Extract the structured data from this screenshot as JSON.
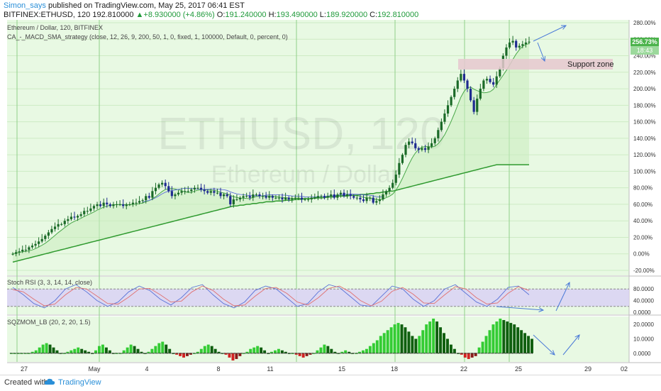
{
  "header": {
    "author": "Simon_says",
    "published_text": " published on TradingView.com, May 25, 2017 06:41 EST",
    "symbol_interval": "BITFINEX:ETHUSD, 120",
    "last": "192.810000",
    "change": "+8.930000 (+4.86%)",
    "open_label": "O:",
    "open": "191.240000",
    "high_label": "H:",
    "high": "193.490000",
    "low_label": "L:",
    "low": "189.920000",
    "close_label": "C:",
    "close": "192.810000"
  },
  "pane_labels": {
    "main_title": "Ethereum / Dollar, 120, BITFINEX",
    "strategy": "CA_-_MACD_SMA_strategy (close, 12, 26, 9, 200, 50, 1, 0, fixed, 1, 100000, Default, 0, percent, 0)",
    "stoch": "Stoch RSI (3, 3, 14, 14, close)",
    "sqz": "SQZMOM_LB (20, 2, 20, 1.5)"
  },
  "watermark": {
    "symbol": "ETHUSD, 120",
    "name": "Ethereum / Dollar"
  },
  "annotation": {
    "support_zone": "Support zone"
  },
  "price_badges": {
    "last": "256.73%",
    "timer": "18:43"
  },
  "footer": {
    "created_with": "Created with",
    "brand": "TradingView"
  },
  "colors": {
    "bg": "#e8f9e3",
    "grid": "#cdebc4",
    "vline": "#8fd08a",
    "ma_long": "#2f9a2f",
    "ma_short": "#4aa84a",
    "ma_blue": "#4a5bd8",
    "support": "#e6c8cf",
    "stoch_band": "#d8d0f5",
    "k_line": "#5a73d8",
    "d_line": "#e07070",
    "mom_green": "#33cc33",
    "mom_dark": "#0f5f0f",
    "mom_red": "#d22222",
    "arrow": "#4a7ad8",
    "up_candle": "#1b6a28",
    "down_candle": "#1e2a90"
  },
  "chart_data": [
    {
      "type": "line",
      "title": "Ethereum / Dollar, 120, BITFINEX",
      "y_unit": "percent",
      "ylim": [
        -20,
        280
      ],
      "y_ticks": [
        "-20.00%",
        "0.00%",
        "20.00%",
        "40.00%",
        "60.00%",
        "80.00%",
        "100.00%",
        "120.00%",
        "140.00%",
        "160.00%",
        "180.00%",
        "200.00%",
        "220.00%",
        "240.00%",
        "260.00%",
        "280.00%"
      ],
      "x_ticks": [
        "27",
        "May",
        "4",
        "8",
        "11",
        "15",
        "18",
        "22",
        "25",
        "29",
        "02"
      ],
      "x": [
        0,
        1,
        2,
        3,
        4,
        5,
        6,
        7,
        8,
        9,
        10,
        11,
        12,
        13,
        14,
        15,
        16,
        17,
        18,
        19,
        20,
        21,
        22,
        23,
        24,
        25,
        26,
        27,
        28,
        29,
        30,
        31,
        32,
        33,
        34,
        35,
        36,
        37,
        38,
        39,
        40,
        41,
        42,
        43,
        44,
        45,
        46,
        47,
        48,
        49,
        50,
        51,
        52,
        53,
        54,
        55,
        56,
        57,
        58,
        59,
        60,
        61,
        62,
        63,
        64,
        65,
        66,
        67,
        68,
        69,
        70,
        71,
        72,
        73,
        74,
        75,
        76,
        77,
        78,
        79,
        80,
        81,
        82,
        83,
        84,
        85,
        86,
        87,
        88,
        89,
        90,
        91,
        92,
        93,
        94,
        95,
        96,
        97,
        98,
        99,
        100,
        101,
        102,
        103,
        104,
        105,
        106,
        107,
        108,
        109,
        110,
        111,
        112,
        113,
        114,
        115,
        116,
        117,
        118,
        119,
        120,
        121,
        122,
        123,
        124,
        125,
        126,
        127,
        128,
        129,
        130,
        131,
        132,
        133,
        134,
        135,
        136,
        137,
        138,
        139,
        140,
        141,
        142,
        143,
        144,
        145,
        146,
        147,
        148,
        149,
        150,
        151,
        152,
        153,
        154,
        155,
        156,
        157,
        158,
        159
      ],
      "series": [
        {
          "name": "",
          "values": [
            0,
            2,
            3,
            5,
            5,
            8,
            10,
            12,
            15,
            18,
            22,
            26,
            30,
            33,
            36,
            36,
            40,
            42,
            45,
            44,
            46,
            48,
            52,
            52,
            55,
            58,
            60,
            58,
            62,
            60,
            58,
            60,
            60,
            60,
            58,
            60,
            60,
            62,
            62,
            64,
            65,
            70,
            68,
            76,
            80,
            84,
            86,
            82,
            76,
            70,
            72,
            74,
            76,
            76,
            76,
            78,
            80,
            80,
            78,
            76,
            74,
            76,
            74,
            74,
            70,
            72,
            70,
            60,
            66,
            66,
            68,
            70,
            70,
            68,
            72,
            72,
            70,
            70,
            68,
            70,
            68,
            68,
            68,
            66,
            68,
            66,
            67,
            68,
            68,
            66,
            66,
            66,
            68,
            68,
            70,
            70,
            68,
            70,
            72,
            68,
            72,
            74,
            70,
            72,
            70,
            68,
            68,
            66,
            64,
            68,
            68,
            62,
            64,
            66,
            72,
            76,
            80,
            86,
            96,
            110,
            120,
            132,
            136,
            134,
            128,
            126,
            128,
            126,
            130,
            134,
            140,
            150,
            160,
            170,
            180,
            190,
            200,
            210,
            218,
            210,
            200,
            186,
            172,
            188,
            200,
            210,
            212,
            208,
            205,
            215,
            225,
            240,
            250,
            256,
            258,
            250,
            252,
            254,
            256,
            257
          ]
        },
        {
          "name": "",
          "values": [
            -10,
            -9,
            -8,
            -7,
            -6,
            -5,
            -4,
            -3,
            -2,
            -1,
            0,
            1,
            2,
            3,
            4,
            5,
            6,
            7,
            8,
            9,
            10,
            11,
            12,
            13,
            14,
            15,
            16,
            17,
            18,
            19,
            20,
            21,
            22,
            23,
            24,
            25,
            26,
            27,
            28,
            29,
            30,
            31,
            32,
            33,
            34,
            35,
            36,
            37,
            38,
            39,
            40,
            41,
            42,
            43,
            44,
            45,
            46,
            47,
            48,
            49,
            50,
            51,
            52,
            53,
            54,
            55,
            56,
            57,
            58,
            58,
            59,
            59,
            60,
            60,
            61,
            61,
            62,
            62,
            63,
            63,
            63,
            64,
            64,
            64,
            65,
            65,
            65,
            66,
            66,
            66,
            67,
            67,
            67,
            68,
            68,
            68,
            68,
            69,
            69,
            69,
            70,
            70,
            70,
            70,
            71,
            71,
            71,
            72,
            72,
            72,
            73,
            73,
            74,
            74,
            75,
            75,
            76,
            76,
            77,
            78,
            79,
            80,
            81,
            82,
            83,
            84,
            85,
            86,
            87,
            88,
            89,
            90,
            91,
            92,
            93,
            94,
            95,
            96,
            97,
            98,
            99,
            100,
            101,
            102,
            103,
            104,
            105,
            106,
            107,
            108,
            108,
            108,
            108,
            108,
            108,
            108,
            108,
            108,
            108,
            108
          ]
        }
      ]
    },
    {
      "type": "line",
      "title": "Stoch RSI (3, 3, 14, 14, close)",
      "ylim": [
        0,
        100
      ],
      "y_ticks": [
        "0.0000",
        "40.0000",
        "80.0000"
      ],
      "series": [
        {
          "name": "",
          "values": [
            85,
            60,
            30,
            15,
            40,
            80,
            95,
            70,
            40,
            20,
            35,
            70,
            90,
            75,
            45,
            25,
            50,
            85,
            95,
            60,
            30,
            15,
            35,
            75,
            90,
            80,
            50,
            20,
            30,
            70,
            95,
            85,
            55,
            25,
            20,
            55,
            90,
            80,
            45,
            20,
            40,
            80,
            95,
            65,
            35,
            20,
            45,
            85,
            90,
            60
          ]
        },
        {
          "name": "",
          "values": [
            78,
            70,
            45,
            22,
            28,
            60,
            85,
            80,
            55,
            30,
            28,
            52,
            80,
            82,
            60,
            35,
            38,
            70,
            90,
            75,
            45,
            22,
            25,
            55,
            82,
            85,
            65,
            35,
            25,
            50,
            82,
            90,
            70,
            40,
            22,
            38,
            72,
            85,
            62,
            32,
            30,
            60,
            88,
            80,
            50,
            28,
            32,
            65,
            88,
            75
          ]
        }
      ]
    },
    {
      "type": "bar",
      "title": "SQZMOM_LB (20, 2, 20, 1.5)",
      "ylim": [
        -6,
        24
      ],
      "y_ticks": [
        "0.0000",
        "10.0000",
        "20.0000"
      ],
      "values": [
        0,
        0,
        0,
        0,
        0,
        0,
        1,
        2,
        4,
        6,
        7,
        6,
        4,
        2,
        0,
        0,
        1,
        2,
        3,
        4,
        3,
        2,
        1,
        0,
        2,
        5,
        6,
        4,
        2,
        0,
        0,
        0,
        2,
        4,
        6,
        5,
        3,
        1,
        0,
        1,
        3,
        5,
        7,
        8,
        6,
        3,
        0,
        -1,
        -2,
        -3,
        -2,
        -1,
        0,
        1,
        3,
        5,
        6,
        5,
        3,
        1,
        0,
        -1,
        -3,
        -5,
        -4,
        -2,
        0,
        1,
        3,
        4,
        5,
        4,
        2,
        0,
        1,
        2,
        3,
        2,
        1,
        0,
        0,
        -1,
        -2,
        -3,
        -2,
        -1,
        0,
        2,
        4,
        6,
        5,
        3,
        1,
        0,
        1,
        2,
        1,
        0,
        0,
        1,
        2,
        3,
        5,
        7,
        9,
        12,
        14,
        16,
        18,
        20,
        21,
        20,
        18,
        15,
        12,
        10,
        12,
        16,
        20,
        22,
        24,
        22,
        18,
        14,
        10,
        6,
        3,
        0,
        -1,
        -3,
        -4,
        -3,
        -2,
        4,
        8,
        12,
        16,
        20,
        22,
        24,
        23,
        22,
        21,
        20,
        18,
        16,
        14,
        12,
        10
      ]
    }
  ]
}
